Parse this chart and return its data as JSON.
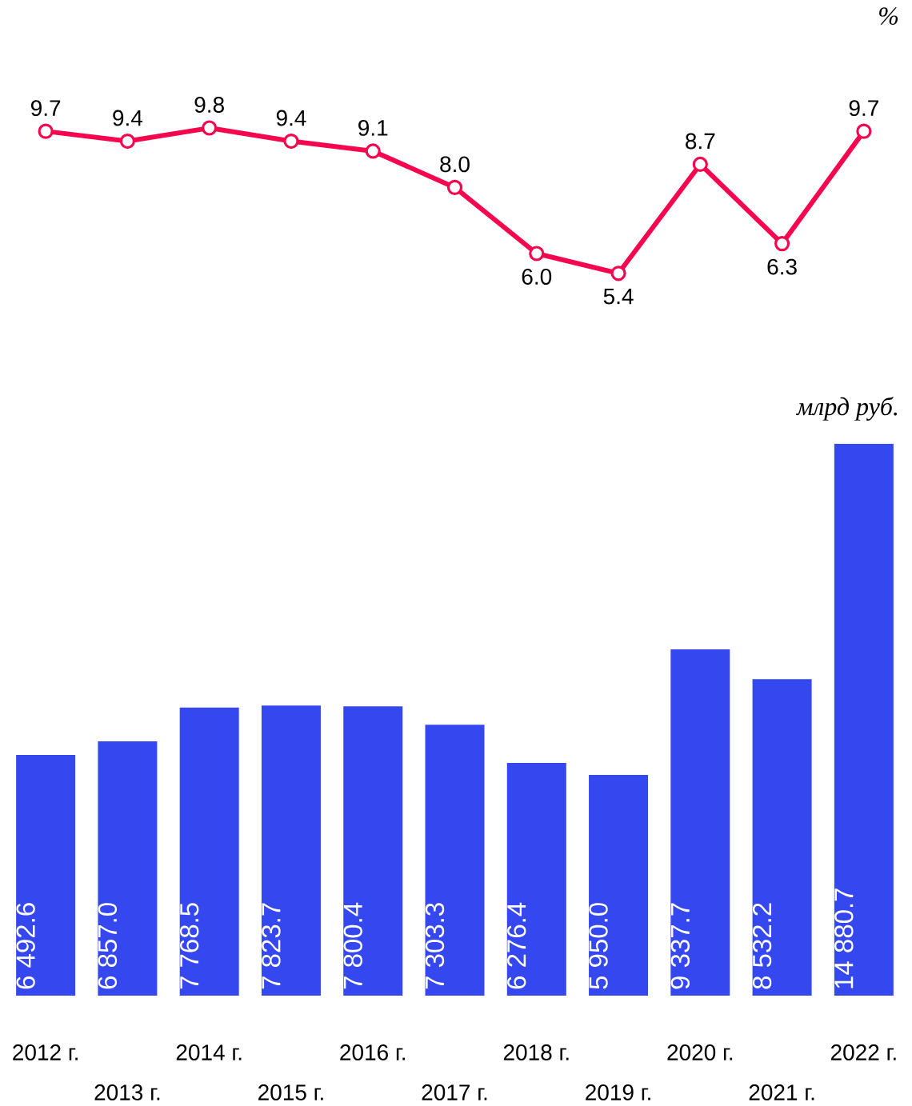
{
  "chart_data": [
    {
      "type": "line",
      "ylabel": "%",
      "categories": [
        null,
        null,
        null,
        null,
        null,
        null,
        null,
        null,
        null,
        null,
        null
      ],
      "values": [
        9.7,
        9.4,
        9.8,
        9.4,
        9.1,
        8.0,
        6.0,
        5.4,
        8.7,
        6.3,
        9.7
      ],
      "value_labels": [
        "9.7",
        "9.4",
        "9.8",
        "9.4",
        "9.1",
        "8.0",
        "6.0",
        "5.4",
        "8.7",
        "6.3",
        "9.7"
      ],
      "color": "#f5074f",
      "marker": "circle",
      "tick_labels": false
    },
    {
      "type": "bar",
      "ylabel": "млрд руб.",
      "categories": [
        "2012 г.",
        "2013 г.",
        "2014 г.",
        "2015 г.",
        "2016 г.",
        "2017 г.",
        "2018 г.",
        "2019 г.",
        "2020 г.",
        "2021 г.",
        "2022 г."
      ],
      "values": [
        6492.6,
        6857.0,
        7768.5,
        7823.7,
        7800.4,
        7303.3,
        6276.4,
        5950.0,
        9337.7,
        8532.2,
        14880.7
      ],
      "value_labels": [
        "6 492.6",
        "6 857.0",
        "7 768.5",
        "7 823.7",
        "7 800.4",
        "7 303.3",
        "6 276.4",
        "5 950.0",
        "9 337.7",
        "8 532.2",
        "14 880.7"
      ],
      "color": "#3548f0",
      "tick_labels": "x"
    }
  ]
}
